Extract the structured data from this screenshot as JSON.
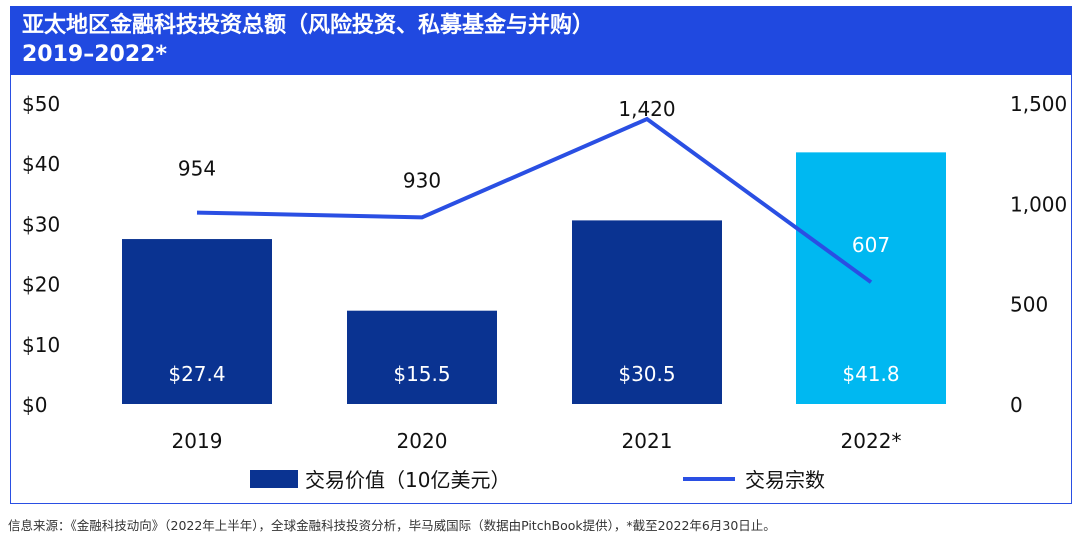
{
  "title_line1": "亚太地区金融科技投资总额（风险投资、私募基金与并购）",
  "title_line2": "2019–2022*",
  "source": "信息来源：《金融科技动向》（2022年上半年），全球金融科技投资分析，毕马威国际（数据由PitchBook提供），*截至2022年6月30日止。",
  "chart_data": {
    "type": "bar+line",
    "categories": [
      "2019",
      "2020",
      "2021",
      "2022*"
    ],
    "series": [
      {
        "name": "交易价值（10亿美元）",
        "type": "bar",
        "axis": "left",
        "values": [
          27.4,
          15.5,
          30.5,
          41.8
        ],
        "labels": [
          "$27.4",
          "$15.5",
          "$30.5",
          "$41.8"
        ],
        "colors": [
          "#0a3391",
          "#0a3391",
          "#0a3391",
          "#00b8f1"
        ]
      },
      {
        "name": "交易宗数",
        "type": "line",
        "axis": "right",
        "values": [
          954,
          930,
          1420,
          607
        ],
        "labels": [
          "954",
          "930",
          "1,420",
          "607"
        ],
        "color": "#2a4fe3"
      }
    ],
    "left_axis": {
      "ylim": [
        0,
        50
      ],
      "ticks": [
        "$0",
        "$10",
        "$20",
        "$30",
        "$40",
        "$50"
      ]
    },
    "right_axis": {
      "ylim": [
        0,
        1500
      ],
      "ticks": [
        "0",
        "500",
        "1,000",
        "1,500"
      ]
    },
    "grid": false,
    "legend": "bottom"
  }
}
